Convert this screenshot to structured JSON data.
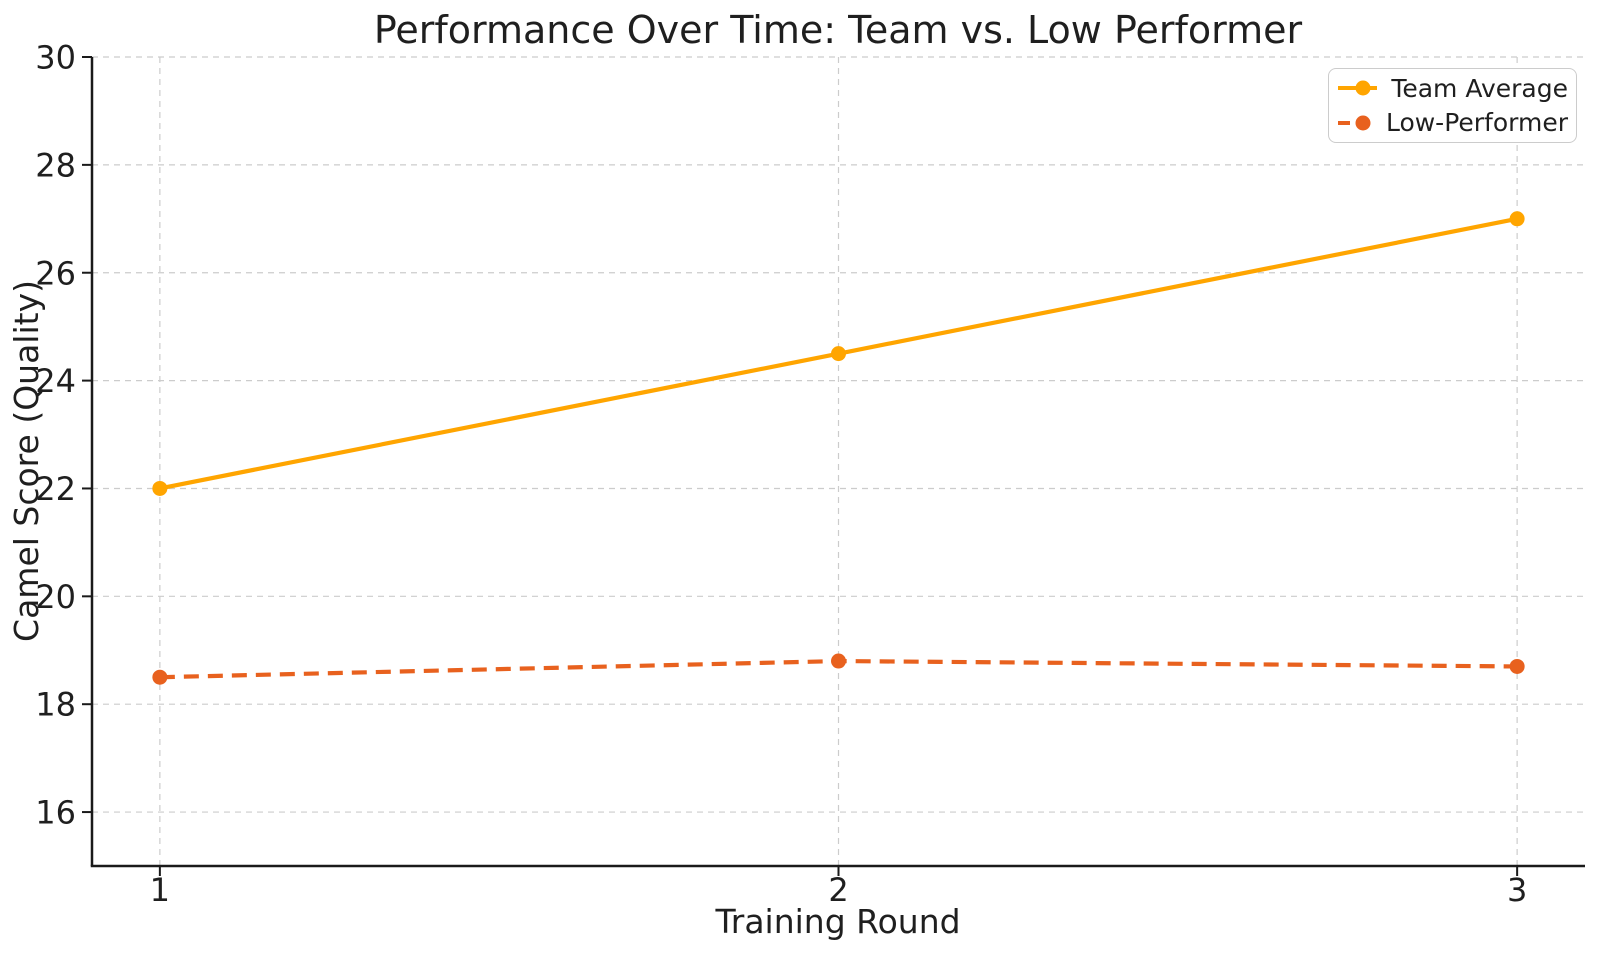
{
  "chart_data": {
    "type": "line",
    "title": "Performance Over Time: Team vs. Low Performer",
    "xlabel": "Training Round",
    "ylabel": "Camel Score (Quality)",
    "x": [
      1,
      2,
      3
    ],
    "series": [
      {
        "name": "Team Average",
        "values": [
          22.0,
          24.5,
          27.0
        ],
        "color": "#FFA500",
        "line_style": "solid",
        "marker": "circle"
      },
      {
        "name": "Low-Performer",
        "values": [
          18.5,
          18.8,
          18.7
        ],
        "color": "#E8611E",
        "line_style": "dashed",
        "marker": "circle"
      }
    ],
    "xlim": [
      0.9,
      3.1
    ],
    "ylim": [
      15,
      30
    ],
    "xticks": [
      "1",
      "2",
      "3"
    ],
    "xtick_values": [
      1,
      2,
      3
    ],
    "yticks": [
      "16",
      "18",
      "20",
      "22",
      "24",
      "26",
      "28",
      "30"
    ],
    "ytick_values": [
      16,
      18,
      20,
      22,
      24,
      26,
      28,
      30
    ],
    "grid": true,
    "grid_style": "dashed",
    "grid_color": "#cccccc",
    "axis_color": "#1a1a1a",
    "background": "#ffffff",
    "legend_position": "upper right"
  }
}
